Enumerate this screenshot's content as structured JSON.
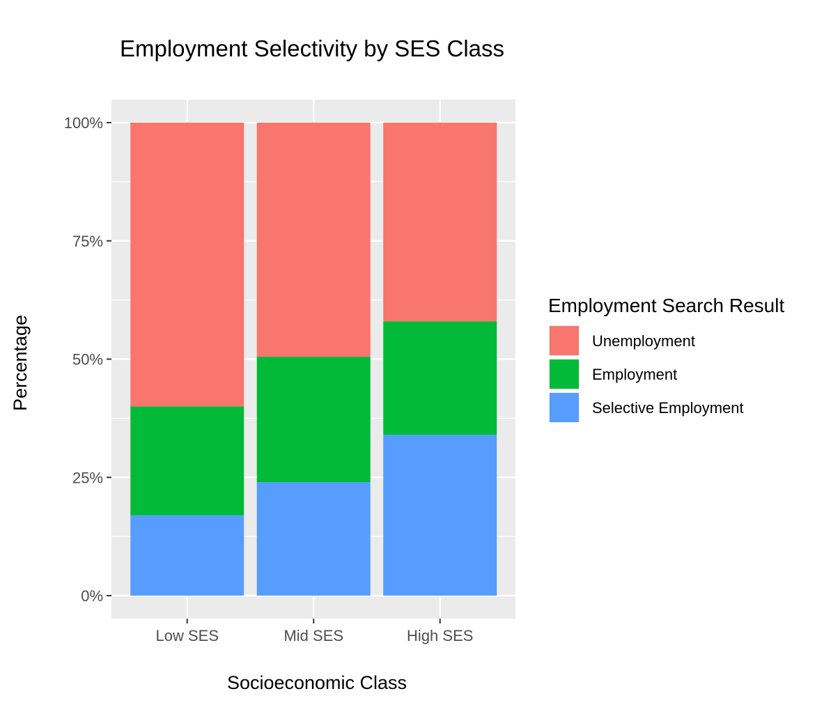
{
  "chart_data": {
    "type": "bar",
    "stacked": true,
    "title": "Employment Selectivity by SES Class",
    "xlabel": "Socioeconomic Class",
    "ylabel": "Percentage",
    "categories": [
      "Low SES",
      "Mid SES",
      "High SES"
    ],
    "ylim": [
      0,
      100
    ],
    "y_ticks": [
      0,
      25,
      50,
      75,
      100
    ],
    "y_tick_labels": [
      "0%",
      "25%",
      "50%",
      "75%",
      "100%"
    ],
    "grid": true,
    "legend": {
      "title": "Employment Search Result",
      "position": "right"
    },
    "series": [
      {
        "name": "Selective Employment",
        "color": "#569DFF",
        "values": [
          17,
          24,
          34
        ]
      },
      {
        "name": "Employment",
        "color": "#00BA38",
        "values": [
          23,
          26.5,
          24
        ]
      },
      {
        "name": "Unemployment",
        "color": "#F8766D",
        "values": [
          60,
          49.5,
          42
        ]
      }
    ],
    "legend_order": [
      "Unemployment",
      "Employment",
      "Selective Employment"
    ],
    "panel_background": "#EBEBEB",
    "grid_color": "#FFFFFF"
  }
}
